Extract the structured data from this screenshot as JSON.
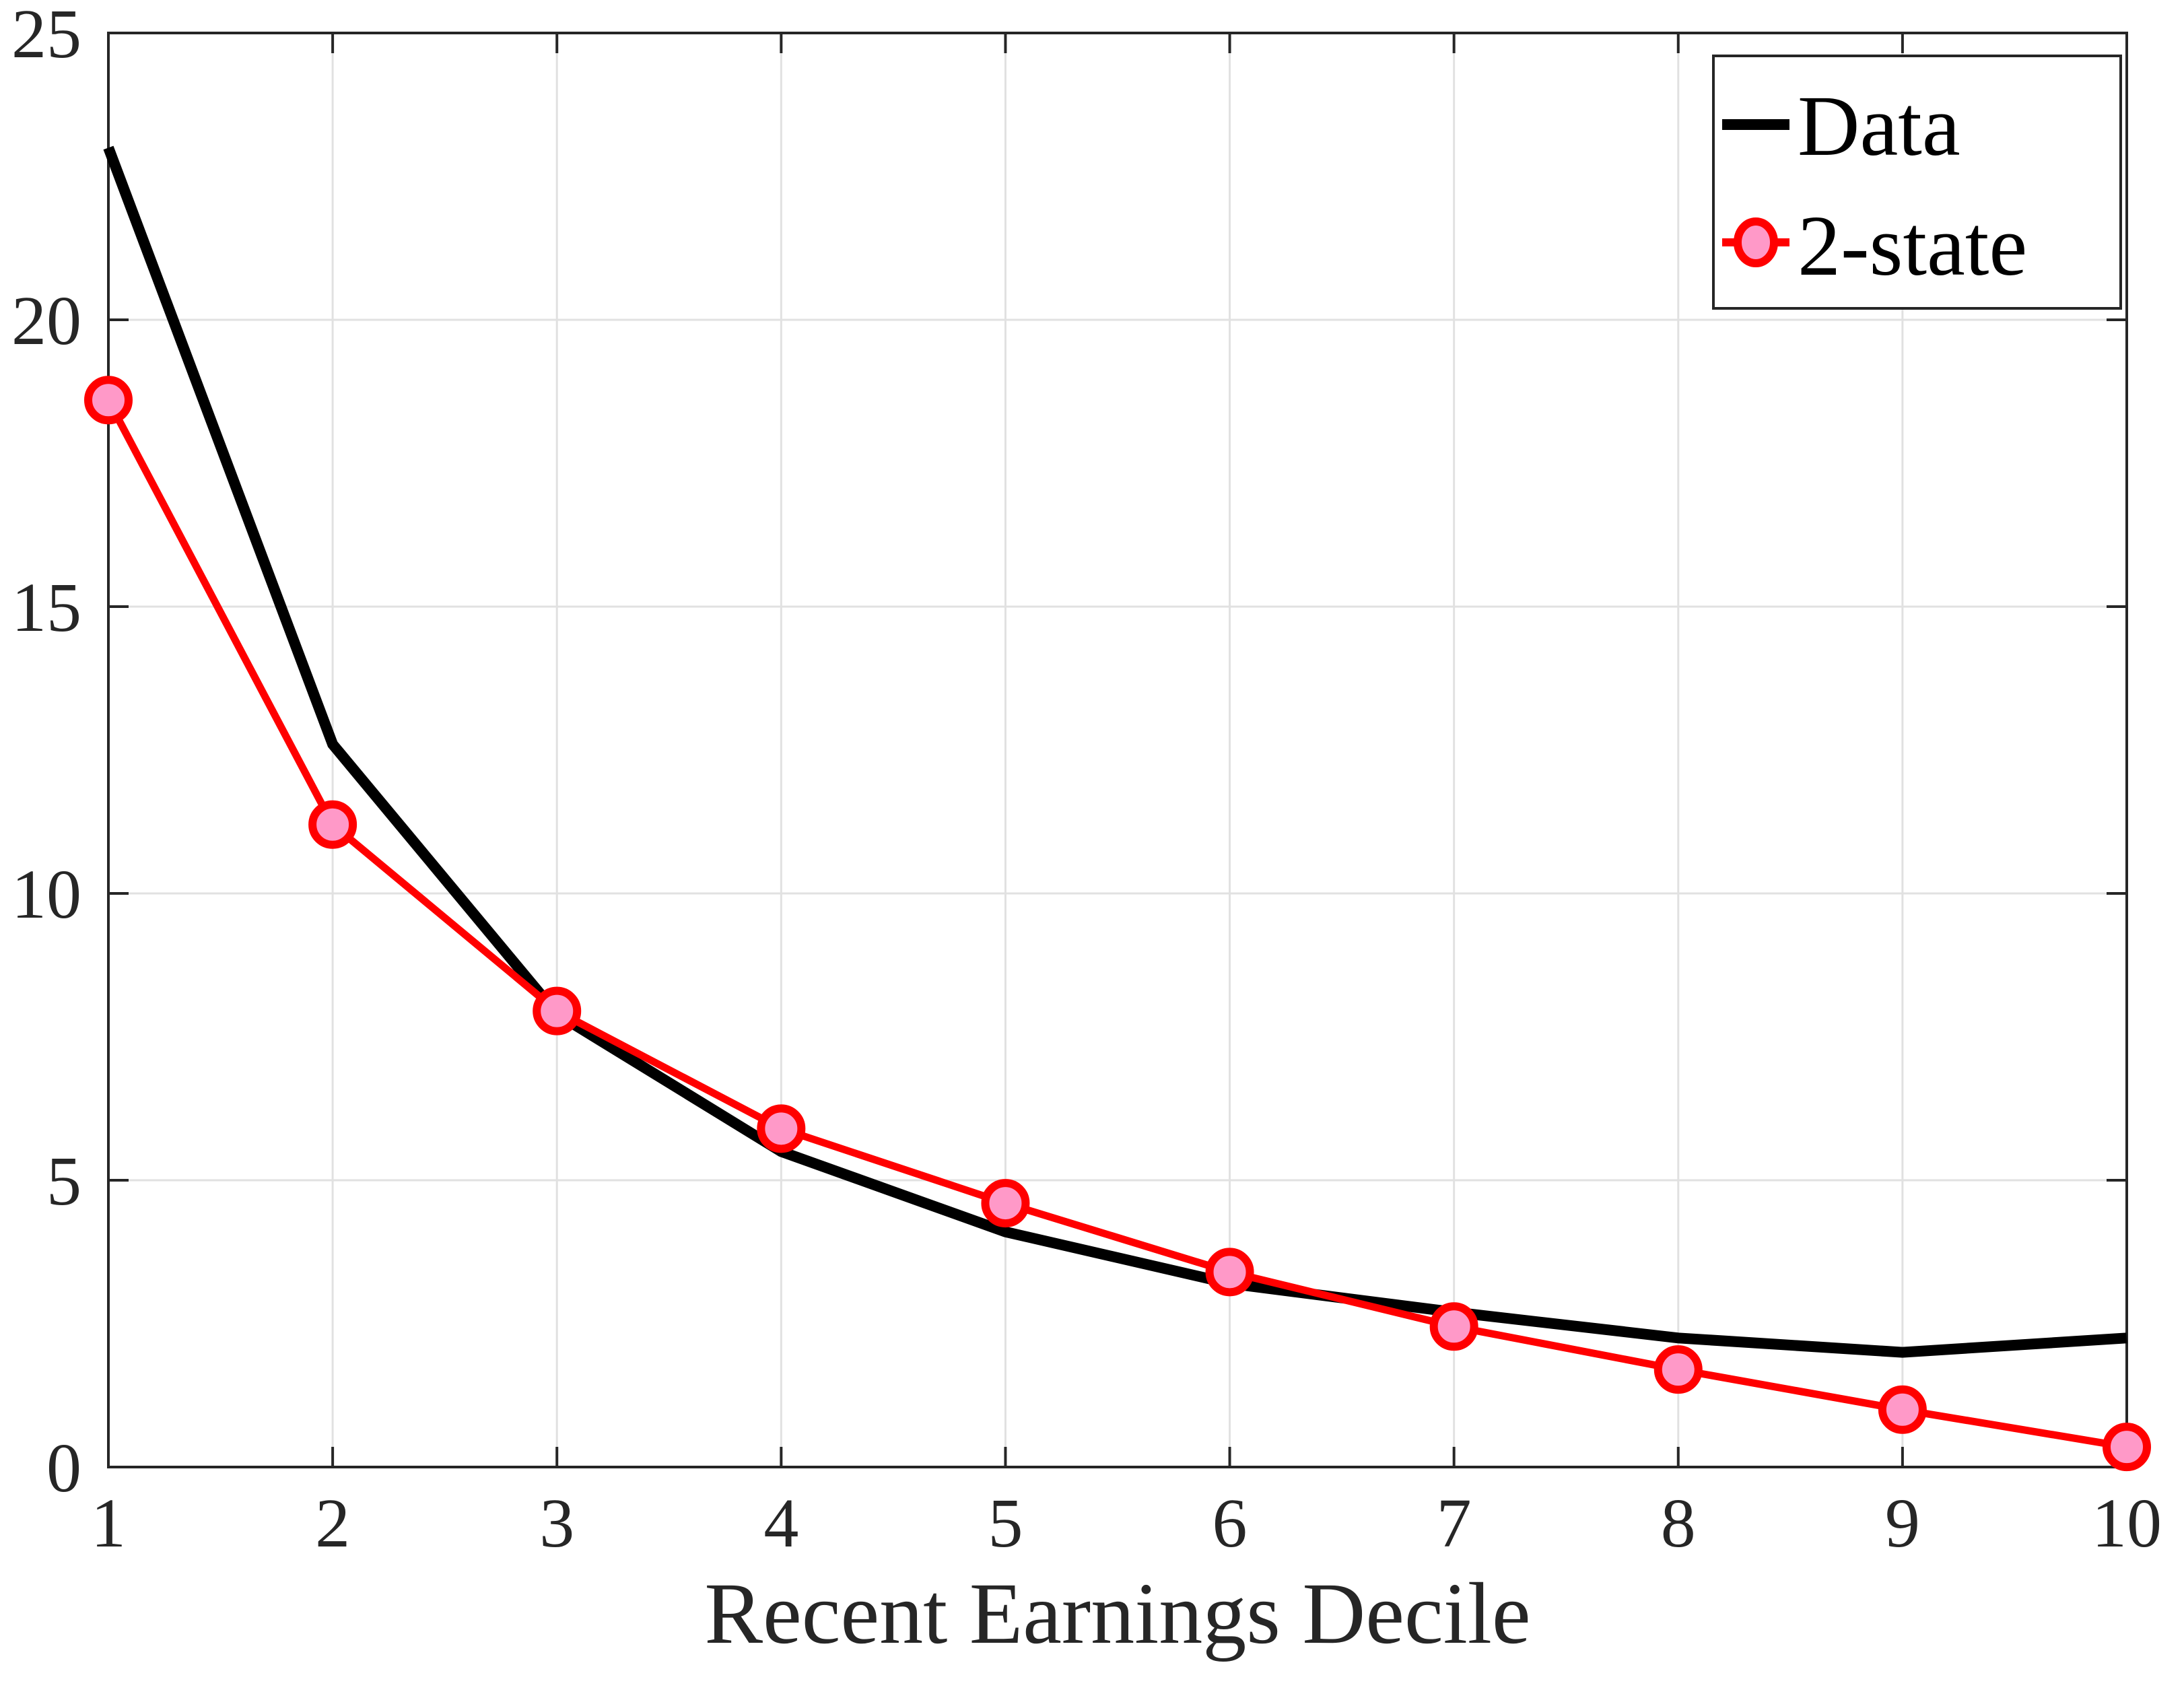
{
  "chart_data": {
    "type": "line",
    "title": "",
    "xlabel": "Recent Earnings Decile",
    "ylabel": "",
    "x": [
      1,
      2,
      3,
      4,
      5,
      6,
      7,
      8,
      9,
      10
    ],
    "xlim": [
      1,
      10
    ],
    "ylim": [
      0,
      25
    ],
    "xticks": [
      "1",
      "2",
      "3",
      "4",
      "5",
      "6",
      "7",
      "8",
      "9",
      "10"
    ],
    "yticks": [
      "0",
      "5",
      "10",
      "15",
      "20",
      "25"
    ],
    "ytick_values": [
      0,
      5,
      10,
      15,
      20,
      25
    ],
    "grid": true,
    "legend_position": "upper right",
    "series": [
      {
        "name": "Data",
        "color": "#000000",
        "marker": "none",
        "values": [
          23.0,
          12.6,
          7.9,
          5.5,
          4.1,
          3.2,
          2.7,
          2.25,
          2.0,
          2.25
        ]
      },
      {
        "name": "2-state",
        "color": "#ff0000",
        "marker": "circle",
        "marker_fill": "#ff99c8",
        "values": [
          18.6,
          11.2,
          7.95,
          5.9,
          4.6,
          3.4,
          2.45,
          1.7,
          1.0,
          0.35
        ]
      }
    ]
  },
  "legend": {
    "items": [
      {
        "label": "Data"
      },
      {
        "label": "2-state"
      }
    ]
  },
  "colors": {
    "axis": "#262626",
    "grid": "#e1e1e1",
    "data_line": "#000000",
    "model_line": "#ff0000",
    "model_marker_fill": "#ff99c8"
  }
}
